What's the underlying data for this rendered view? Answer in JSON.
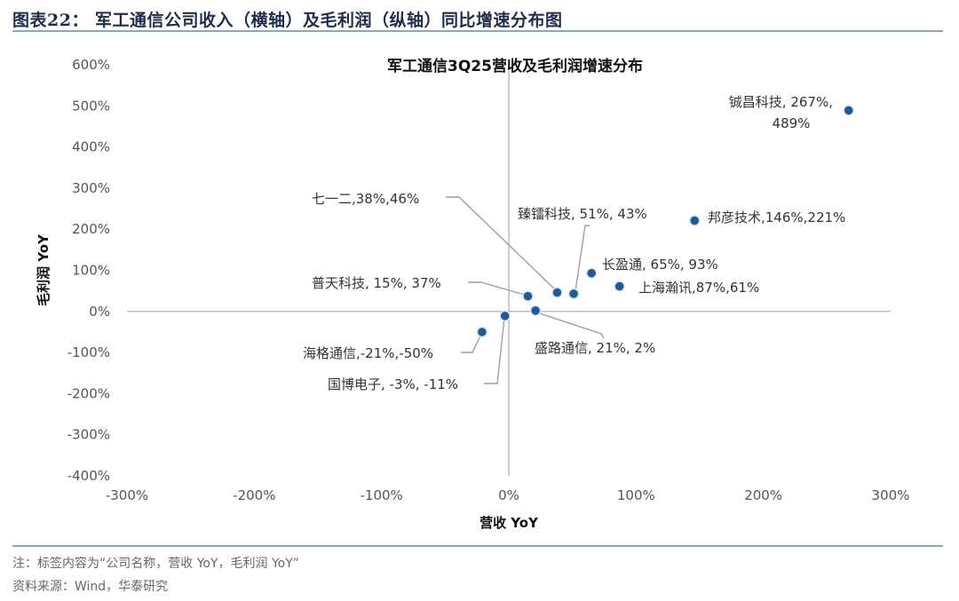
{
  "figure": {
    "title": "图表22：  军工通信公司收入（横轴）及毛利润（纵轴）同比增速分布图",
    "note": "注：标签内容为“公司名称，营收 YoY，毛利润 YoY”",
    "source": "资料来源：Wind，华泰研究"
  },
  "chart_data": {
    "type": "scatter",
    "title": "军工通信3Q25营收及毛利润增速分布",
    "xlabel": "营收 YoY",
    "ylabel": "毛利润 YoY",
    "xlim": [
      -300,
      300
    ],
    "ylim": [
      -400,
      600
    ],
    "x_ticks": [
      "-300%",
      "-200%",
      "-100%",
      "0%",
      "100%",
      "200%",
      "300%"
    ],
    "y_ticks": [
      "600%",
      "500%",
      "400%",
      "300%",
      "200%",
      "100%",
      "0%",
      "-100%",
      "-200%",
      "-300%",
      "-400%"
    ],
    "grid": false,
    "marker_color": "#1f5a96",
    "points": [
      {
        "x": 267,
        "y": 489,
        "label_lines": [
          "铖昌科技, 267%,",
          "489%"
        ]
      },
      {
        "x": 146,
        "y": 221,
        "label_lines": [
          "邦彦技术,146%,221%"
        ]
      },
      {
        "x": 65,
        "y": 93,
        "label_lines": [
          "长盈通, 65%, 93%"
        ]
      },
      {
        "x": 87,
        "y": 61,
        "label_lines": [
          "上海瀚讯,87%,61%"
        ]
      },
      {
        "x": 51,
        "y": 43,
        "label_lines": [
          "臻镭科技, 51%, 43%"
        ]
      },
      {
        "x": 38,
        "y": 46,
        "label_lines": [
          "七一二,38%,46%"
        ]
      },
      {
        "x": 15,
        "y": 37,
        "label_lines": [
          "普天科技, 15%, 37%"
        ]
      },
      {
        "x": 21,
        "y": 2,
        "label_lines": [
          "盛路通信, 21%, 2%"
        ]
      },
      {
        "x": -3,
        "y": -11,
        "label_lines": [
          "国博电子, -3%, -11%"
        ]
      },
      {
        "x": -21,
        "y": -50,
        "label_lines": [
          "海格通信,-21%,-50%"
        ]
      }
    ]
  }
}
